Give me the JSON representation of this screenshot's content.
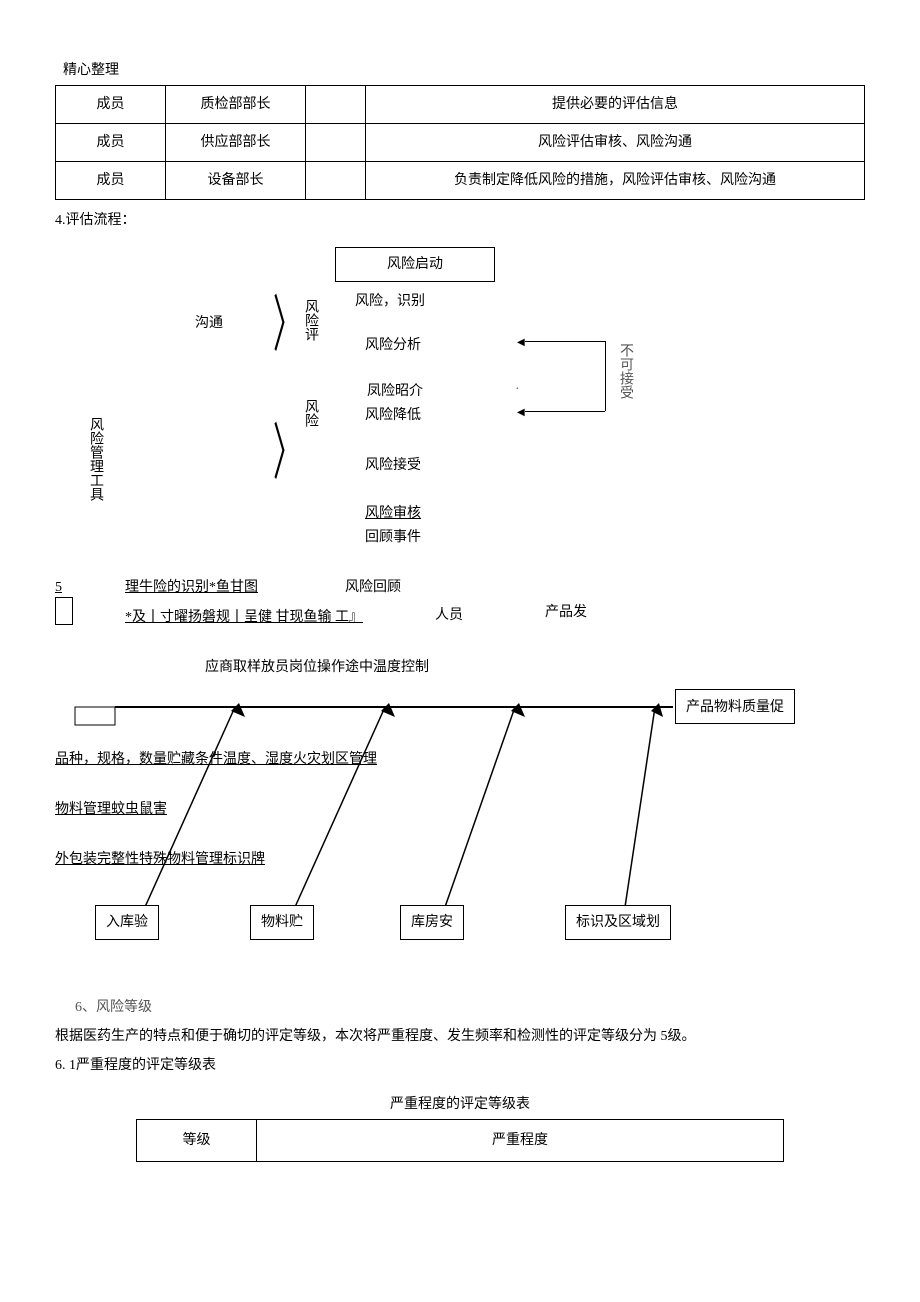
{
  "header": {
    "label": "精心整理"
  },
  "table1": {
    "rows": [
      {
        "role": "成员",
        "dept": "质检部部长",
        "blank": "",
        "desc": "提供必要的评估信息"
      },
      {
        "role": "成员",
        "dept": "供应部部长",
        "blank": "",
        "desc": "风险评估审核、风险沟通"
      },
      {
        "role": "成员",
        "dept": "设备部长",
        "blank": "",
        "desc": "负责制定降低风险的措施，风险评估审核、风险沟通"
      }
    ]
  },
  "section4": {
    "title": "4.评估流程："
  },
  "flow": {
    "box_start": "风险启动",
    "s_identify": "风险，识别",
    "s_analysis": "风险分析",
    "s_intro": "凤险昭介",
    "s_reduce": "风险降低",
    "s_accept": "风险接受",
    "s_audit": "风险审核",
    "s_event": "回顾事件",
    "s_review": "风险回顾",
    "left_comm": "沟通",
    "left_risk1": "风险评",
    "left_risk2": "风险",
    "left_tool": "风险管理工具",
    "right_na": "不可接受",
    "item5_line1": "理牛险的识别*鱼甘图",
    "item5_line2a": "*及丨寸曜扬磐规丨呈健 甘现鱼输 工』",
    "item5_line2b": "人员",
    "item5_line2c": "产品发",
    "num5": "5"
  },
  "fishbone": {
    "top_text": "应商取样放员岗位操作途中温度控制",
    "result_box": "产品物料质量促",
    "branch1": "品种，规格，数量贮藏条件温度、湿度火灾划区管理",
    "branch2": "物料管理蚊虫鼠害",
    "branch3": "外包装完整性特殊物料管理标识牌",
    "box1": "入库验",
    "box2": "物料贮",
    "box3": "库房安",
    "box4": "标识及区域划",
    "spine_color": "#000000",
    "branch_color": "#000000"
  },
  "section6": {
    "title": "6、风险等级",
    "para": "根据医药生产的特点和便于确切的评定等级，本次将严重程度、发生频率和检测性的评定等级分为 5级。",
    "sub": "6. 1严重程度的评定等级表",
    "table_title": "严重程度的评定等级表",
    "col1": "等级",
    "col2": "严重程度"
  }
}
